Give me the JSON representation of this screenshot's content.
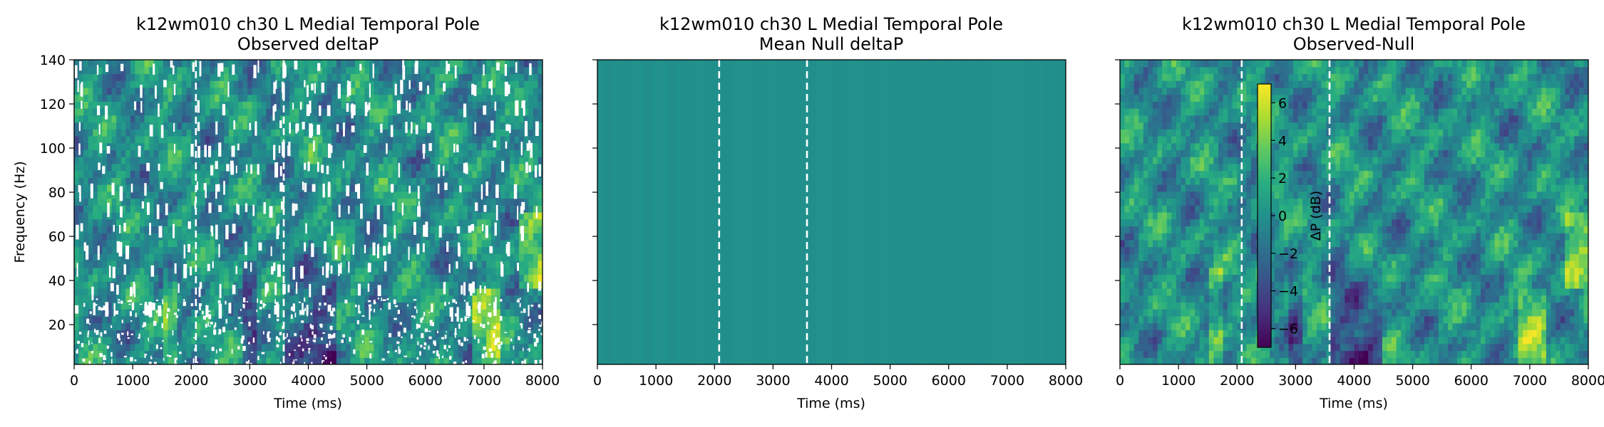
{
  "chart_data": [
    {
      "type": "heatmap",
      "title": "k12wm010 ch30 L Medial Temporal Pole",
      "subtitle": "Observed deltaP",
      "xlabel": "Time (ms)",
      "ylabel": "Frequency (Hz)",
      "xlim": [
        0,
        8000
      ],
      "ylim": [
        2,
        140
      ],
      "xticks": [
        "0",
        "1000",
        "2000",
        "3000",
        "4000",
        "5000",
        "6000",
        "7000",
        "8000"
      ],
      "yticks": [
        "20",
        "40",
        "60",
        "80",
        "100",
        "120",
        "140"
      ],
      "event_lines_ms": [
        2080,
        3580
      ],
      "colormap": "viridis",
      "masked": true
    },
    {
      "type": "heatmap",
      "title": "k12wm010 ch30 L Medial Temporal Pole",
      "subtitle": "Mean Null deltaP",
      "xlabel": "Time (ms)",
      "ylabel": "",
      "xlim": [
        0,
        8000
      ],
      "ylim": [
        2,
        140
      ],
      "xticks": [
        "0",
        "1000",
        "2000",
        "3000",
        "4000",
        "5000",
        "6000",
        "7000",
        "8000"
      ],
      "yticks": [
        "20",
        "40",
        "60",
        "80",
        "100",
        "120",
        "140"
      ],
      "event_lines_ms": [
        2080,
        3580
      ],
      "colormap": "viridis",
      "uniform_value_db": 0
    },
    {
      "type": "heatmap",
      "title": "k12wm010 ch30 L Medial Temporal Pole",
      "subtitle": "Observed-Null",
      "xlabel": "Time (ms)",
      "ylabel": "",
      "xlim": [
        0,
        8000
      ],
      "ylim": [
        2,
        140
      ],
      "xticks": [
        "0",
        "1000",
        "2000",
        "3000",
        "4000",
        "5000",
        "6000",
        "7000",
        "8000"
      ],
      "yticks": [
        "20",
        "40",
        "60",
        "80",
        "100",
        "120",
        "140"
      ],
      "event_lines_ms": [
        2080,
        3580
      ],
      "colormap": "viridis",
      "colorbar": {
        "label": "ΔP (dB)",
        "range": [
          -7,
          7
        ],
        "ticks": [
          "6",
          "4",
          "2",
          "0",
          "−2",
          "−4",
          "−6"
        ]
      }
    }
  ]
}
